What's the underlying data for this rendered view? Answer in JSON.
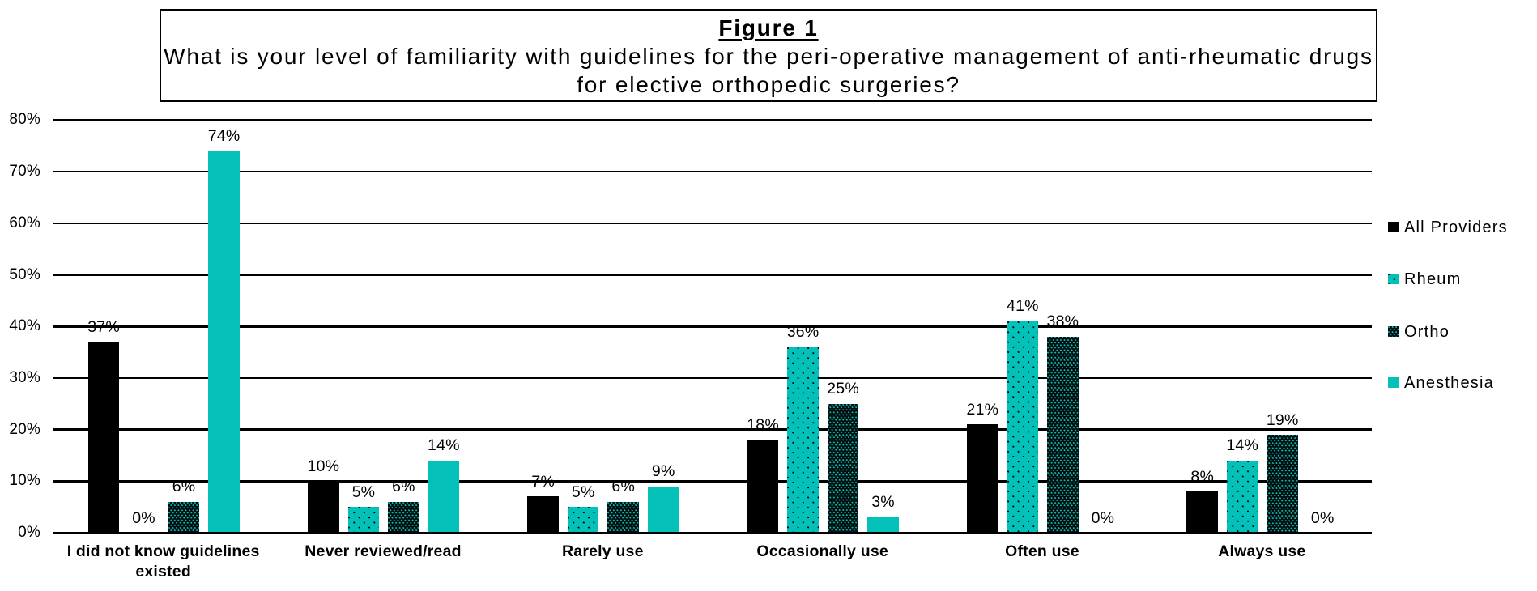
{
  "chart_data": {
    "type": "bar",
    "figure_label": "Figure 1",
    "title": "Figure 1",
    "question": "What is your level of familiarity with guidelines for the peri-operative management of anti-rheumatic drugs for elective orthopedic surgeries?",
    "question_lines": [
      "What is your level of familiarity with guidelines for the peri-operative management of anti-rheumatic drugs",
      "for elective orthopedic surgeries?"
    ],
    "categories": [
      "I did not know guidelines existed",
      "Never reviewed/read",
      "Rarely use",
      "Occasionally use",
      "Often use",
      "Always use"
    ],
    "category_display_lines": [
      [
        "I did not know guidelines",
        "existed"
      ],
      [
        "Never reviewed/read"
      ],
      [
        "Rarely use"
      ],
      [
        "Occasionally use"
      ],
      [
        "Often use"
      ],
      [
        "Always use"
      ]
    ],
    "series": [
      {
        "name": "All Providers",
        "fill": "solid-black",
        "values": [
          37,
          10,
          7,
          18,
          21,
          8
        ],
        "labels": [
          "37%",
          "10%",
          "7%",
          "18%",
          "21%",
          "8%"
        ]
      },
      {
        "name": "Rheum",
        "fill": "teal-with-black-dots",
        "values": [
          0,
          5,
          5,
          36,
          41,
          14
        ],
        "labels": [
          "0%",
          "5%",
          "5%",
          "36%",
          "41%",
          "14%"
        ]
      },
      {
        "name": "Ortho",
        "fill": "black-with-teal-dots",
        "values": [
          6,
          6,
          6,
          25,
          38,
          19
        ],
        "labels": [
          "6%",
          "6%",
          "6%",
          "25%",
          "38%",
          "19%"
        ]
      },
      {
        "name": "Anesthesia",
        "fill": "solid-teal",
        "values": [
          74,
          14,
          9,
          3,
          0,
          0
        ],
        "labels": [
          "74%",
          "14%",
          "9%",
          "3%",
          "0%",
          "0%"
        ]
      }
    ],
    "y_ticks": [
      "0%",
      "10%",
      "20%",
      "30%",
      "40%",
      "50%",
      "60%",
      "70%",
      "80%"
    ],
    "ylim": [
      0,
      80
    ],
    "xlabel": "",
    "ylabel": "",
    "grid": true,
    "legend_position": "right",
    "legend_labels": [
      "All Providers",
      "Rheum",
      "Ortho",
      "Anesthesia"
    ],
    "colors": {
      "teal": "#03c0b8",
      "black": "#000000"
    }
  }
}
